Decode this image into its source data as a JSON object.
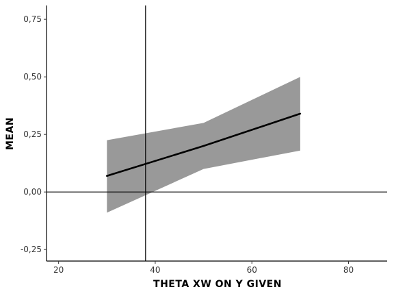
{
  "chart_data": {
    "type": "line",
    "xlabel": "THETA XW ON Y GIVEN",
    "ylabel": "MEAN",
    "xlim": [
      17.5,
      88
    ],
    "ylim": [
      -0.3,
      0.81
    ],
    "x_ticks": [
      20,
      40,
      60,
      80
    ],
    "x_tick_labels": [
      "20",
      "40",
      "60",
      "80"
    ],
    "y_ticks": [
      -0.25,
      0.0,
      0.25,
      0.5,
      0.75
    ],
    "y_tick_labels": [
      "-0,25",
      "0,00",
      "0,25",
      "0,50",
      "0,75"
    ],
    "grid": false,
    "series": [
      {
        "x": [
          30,
          50,
          70
        ],
        "y": [
          0.07,
          0.2,
          0.34
        ],
        "lower": [
          -0.09,
          0.1,
          0.18
        ],
        "upper": [
          0.225,
          0.3,
          0.5
        ],
        "line_color": "#000000",
        "band_color": "#999999"
      }
    ],
    "reference_lines": [
      {
        "orientation": "vertical",
        "value": 38
      },
      {
        "orientation": "horizontal",
        "value": 0
      }
    ]
  }
}
